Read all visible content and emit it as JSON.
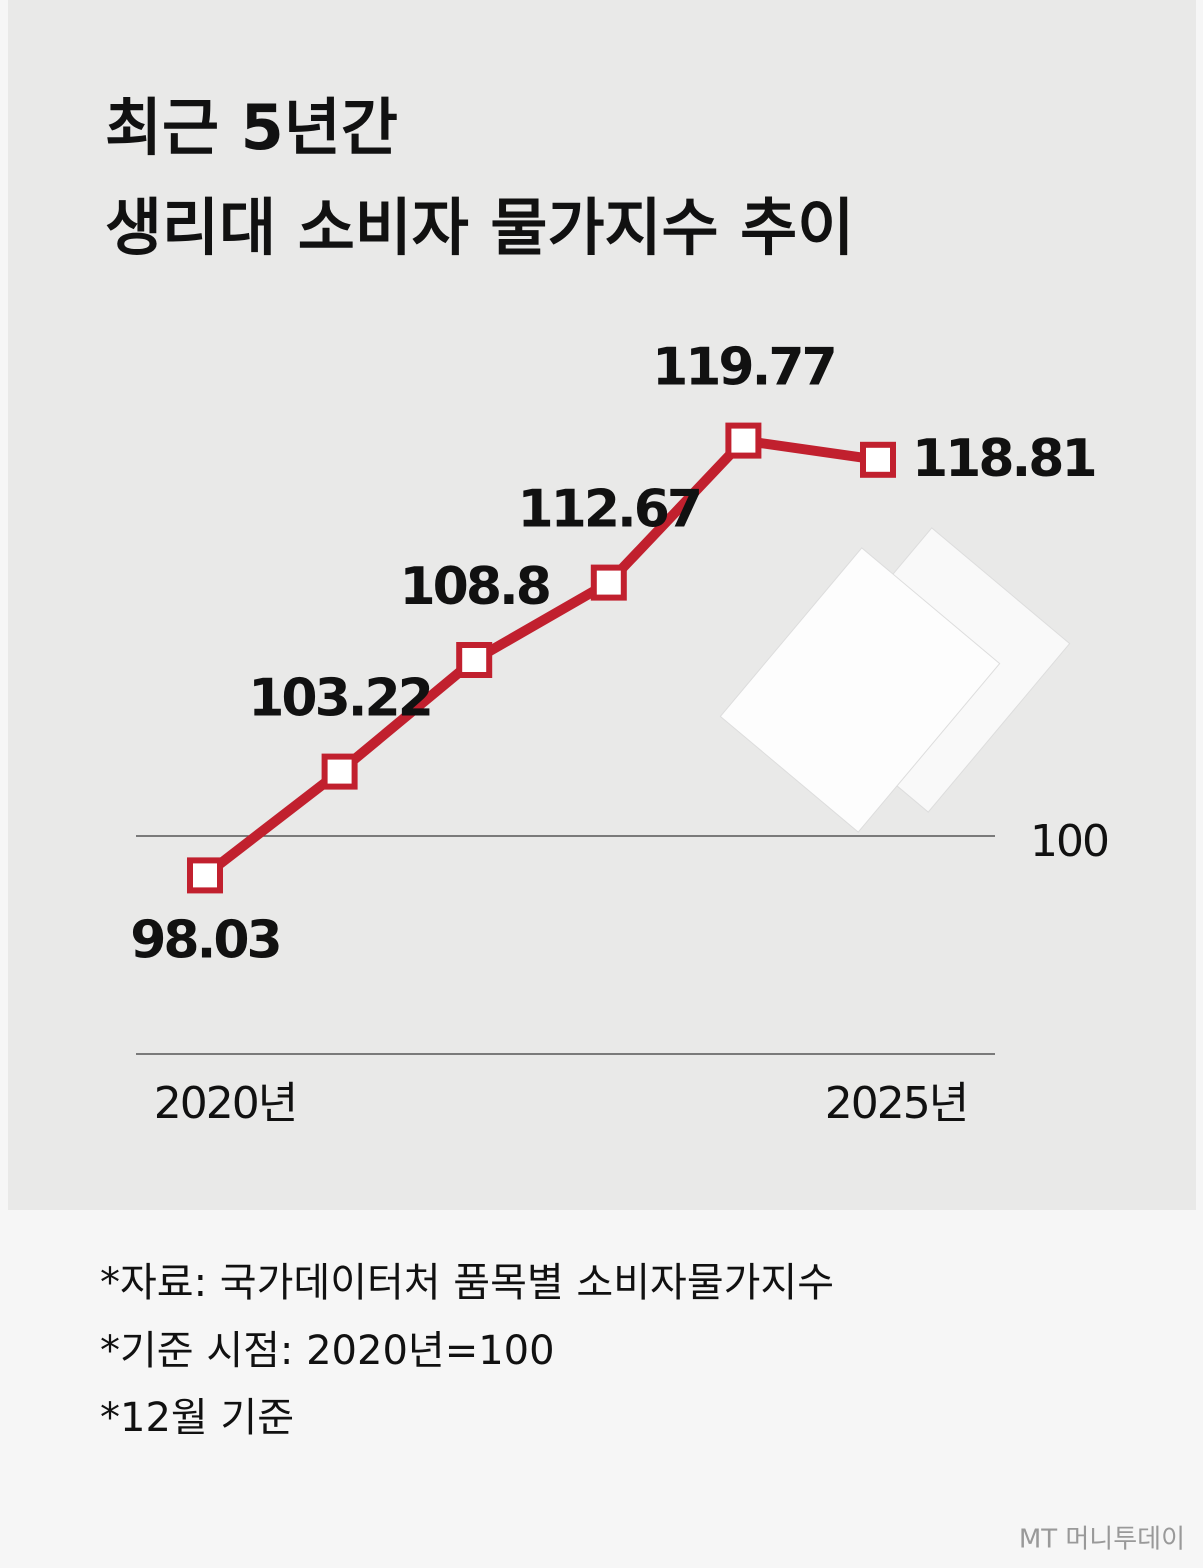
{
  "chart_data": {
    "type": "line",
    "title": [
      "최근 5년간",
      "생리대 소비자 물가지수 추이"
    ],
    "categories": [
      "2020년",
      null,
      null,
      null,
      null,
      "2025년"
    ],
    "series": [
      {
        "name": "생리대 소비자 물가지수",
        "color": "#c1202e",
        "values": [
          98.03,
          103.22,
          108.8,
          112.67,
          119.77,
          118.81
        ]
      }
    ],
    "ylim": [
      89.1,
      120
    ],
    "yticks": [
      100
    ],
    "grid": true,
    "notes": [
      "*자료: 국가데이터처 품목별 소비자물가지수",
      "*기준 시점: 2020년=100",
      "*12월 기준"
    ],
    "credit": "MT 머니투데이"
  }
}
